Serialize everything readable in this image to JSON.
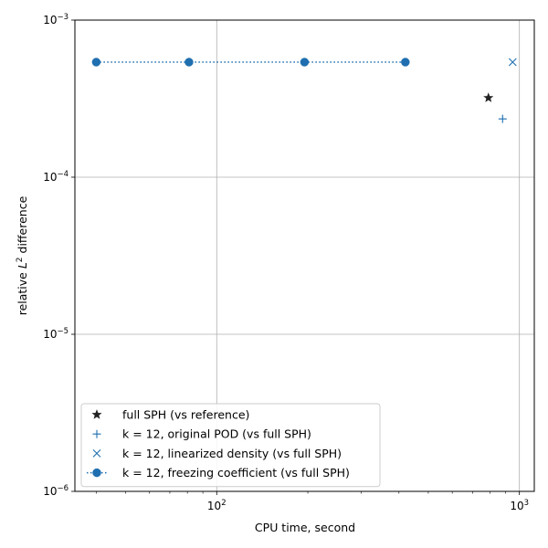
{
  "chart_data": {
    "type": "scatter",
    "xlabel": "CPU time, second",
    "ylabel_prefix": "relative ",
    "ylabel_var": "L",
    "ylabel_sup": "2",
    "ylabel_suffix": " difference",
    "xscale": "log",
    "yscale": "log",
    "xlim": [
      34,
      1120
    ],
    "ylim": [
      1e-06,
      0.001
    ],
    "grid": true,
    "legend_position": "lower-left",
    "x_ticks": [
      {
        "value": 100,
        "base": "10",
        "exp": "2"
      },
      {
        "value": 1000,
        "base": "10",
        "exp": "3"
      }
    ],
    "y_ticks": [
      {
        "value": 0.001,
        "base": "10",
        "exp": "−3"
      },
      {
        "value": 0.0001,
        "base": "10",
        "exp": "−4"
      },
      {
        "value": 1e-05,
        "base": "10",
        "exp": "−5"
      },
      {
        "value": 1e-06,
        "base": "10",
        "exp": "−6"
      }
    ],
    "series": [
      {
        "name": "full SPH (vs reference)",
        "marker": "star",
        "color": "#222222",
        "line": false,
        "points": [
          {
            "x": 790,
            "y": 0.00032
          }
        ]
      },
      {
        "name": "k = 12, original POD (vs full SPH)",
        "marker": "plus",
        "color": "#1f6fb0",
        "line": false,
        "points": [
          {
            "x": 880,
            "y": 0.000235
          }
        ]
      },
      {
        "name": "k = 12, linearized density (vs full SPH)",
        "marker": "x",
        "color": "#1f6fb0",
        "line": false,
        "points": [
          {
            "x": 950,
            "y": 0.00054
          }
        ]
      },
      {
        "name": "k = 12, freezing coefficient (vs full SPH)",
        "marker": "circle",
        "color": "#1f6fb0",
        "line": "dotted",
        "points": [
          {
            "x": 40,
            "y": 0.00054
          },
          {
            "x": 81,
            "y": 0.00054
          },
          {
            "x": 195,
            "y": 0.00054
          },
          {
            "x": 420,
            "y": 0.00054
          }
        ]
      }
    ]
  }
}
